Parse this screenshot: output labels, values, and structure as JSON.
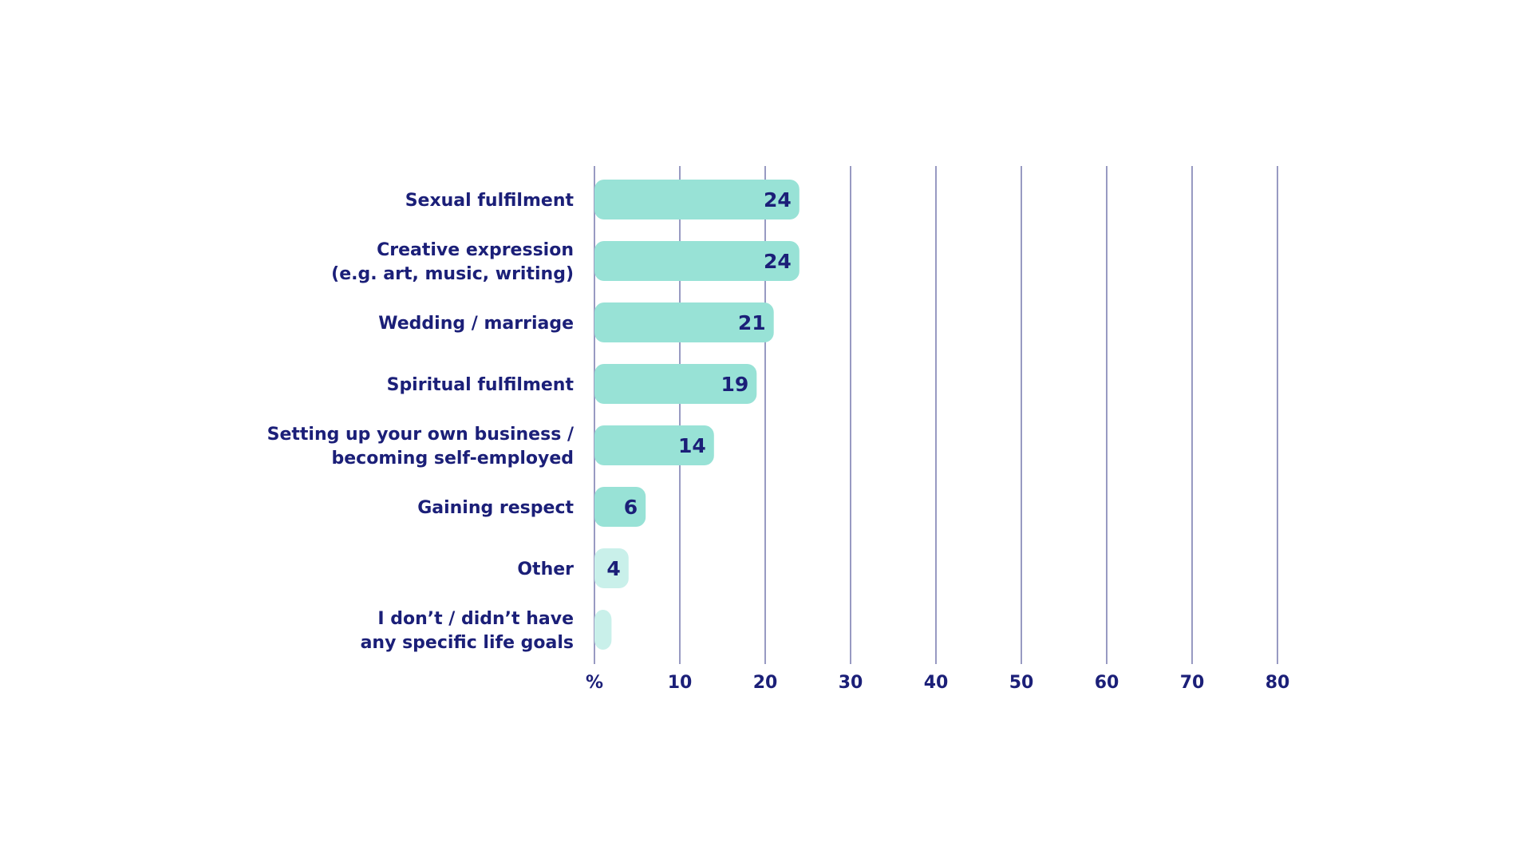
{
  "chart_data": {
    "type": "bar",
    "orientation": "horizontal",
    "categories": [
      [
        "Sexual fulfilment"
      ],
      [
        "Creative expression",
        "(e.g. art, music, writing)"
      ],
      [
        "Wedding / marriage"
      ],
      [
        "Spiritual fulfilment"
      ],
      [
        "Setting up your own business /",
        "becoming self-employed"
      ],
      [
        "Gaining respect"
      ],
      [
        "Other"
      ],
      [
        "I don’t / didn’t have",
        "any specific life goals"
      ]
    ],
    "values": [
      24,
      24,
      21,
      19,
      14,
      6,
      4,
      2
    ],
    "value_labels": [
      "24",
      "24",
      "21",
      "19",
      "14",
      "6",
      "4",
      ""
    ],
    "bar_colors": [
      "#98e2d6",
      "#98e2d6",
      "#98e2d6",
      "#98e2d6",
      "#98e2d6",
      "#98e2d6",
      "#c9f0ea",
      "#c9f0ea"
    ],
    "xlim": [
      0,
      80
    ],
    "x_ticks": [
      0,
      10,
      20,
      30,
      40,
      50,
      60,
      70,
      80
    ],
    "x_tick_labels": [
      "%",
      "10",
      "20",
      "30",
      "40",
      "50",
      "60",
      "70",
      "80"
    ],
    "grid": true,
    "text_color": "#1b1f78",
    "grid_color": "#1b1f78"
  }
}
